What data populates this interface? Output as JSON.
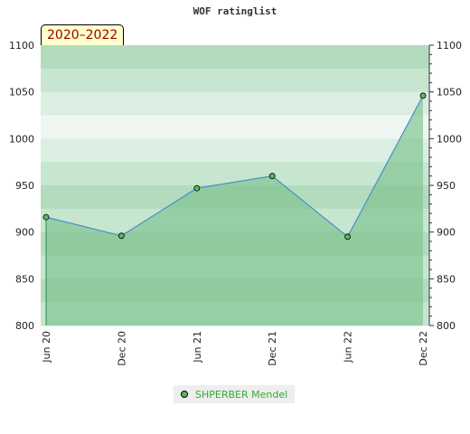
{
  "chart_data": {
    "type": "area",
    "title": "WOF ratinglist",
    "range_label": "2020–2022",
    "categories": [
      "Jun 20",
      "Dec 20",
      "Jun 21",
      "Dec 21",
      "Jun 22",
      "Dec 22"
    ],
    "series": [
      {
        "name": "SHPERBER Mendel",
        "values": [
          916,
          896,
          947,
          960,
          895,
          1046
        ]
      }
    ],
    "ylim": [
      800,
      1100
    ],
    "y_ticks": [
      800,
      850,
      900,
      950,
      1000,
      1050,
      1100
    ],
    "legend_position": "bottom",
    "colors": {
      "line": "#4a90c8",
      "area": "#7cc28e",
      "marker": "#5cb85c",
      "legend_text": "#33aa33"
    }
  }
}
